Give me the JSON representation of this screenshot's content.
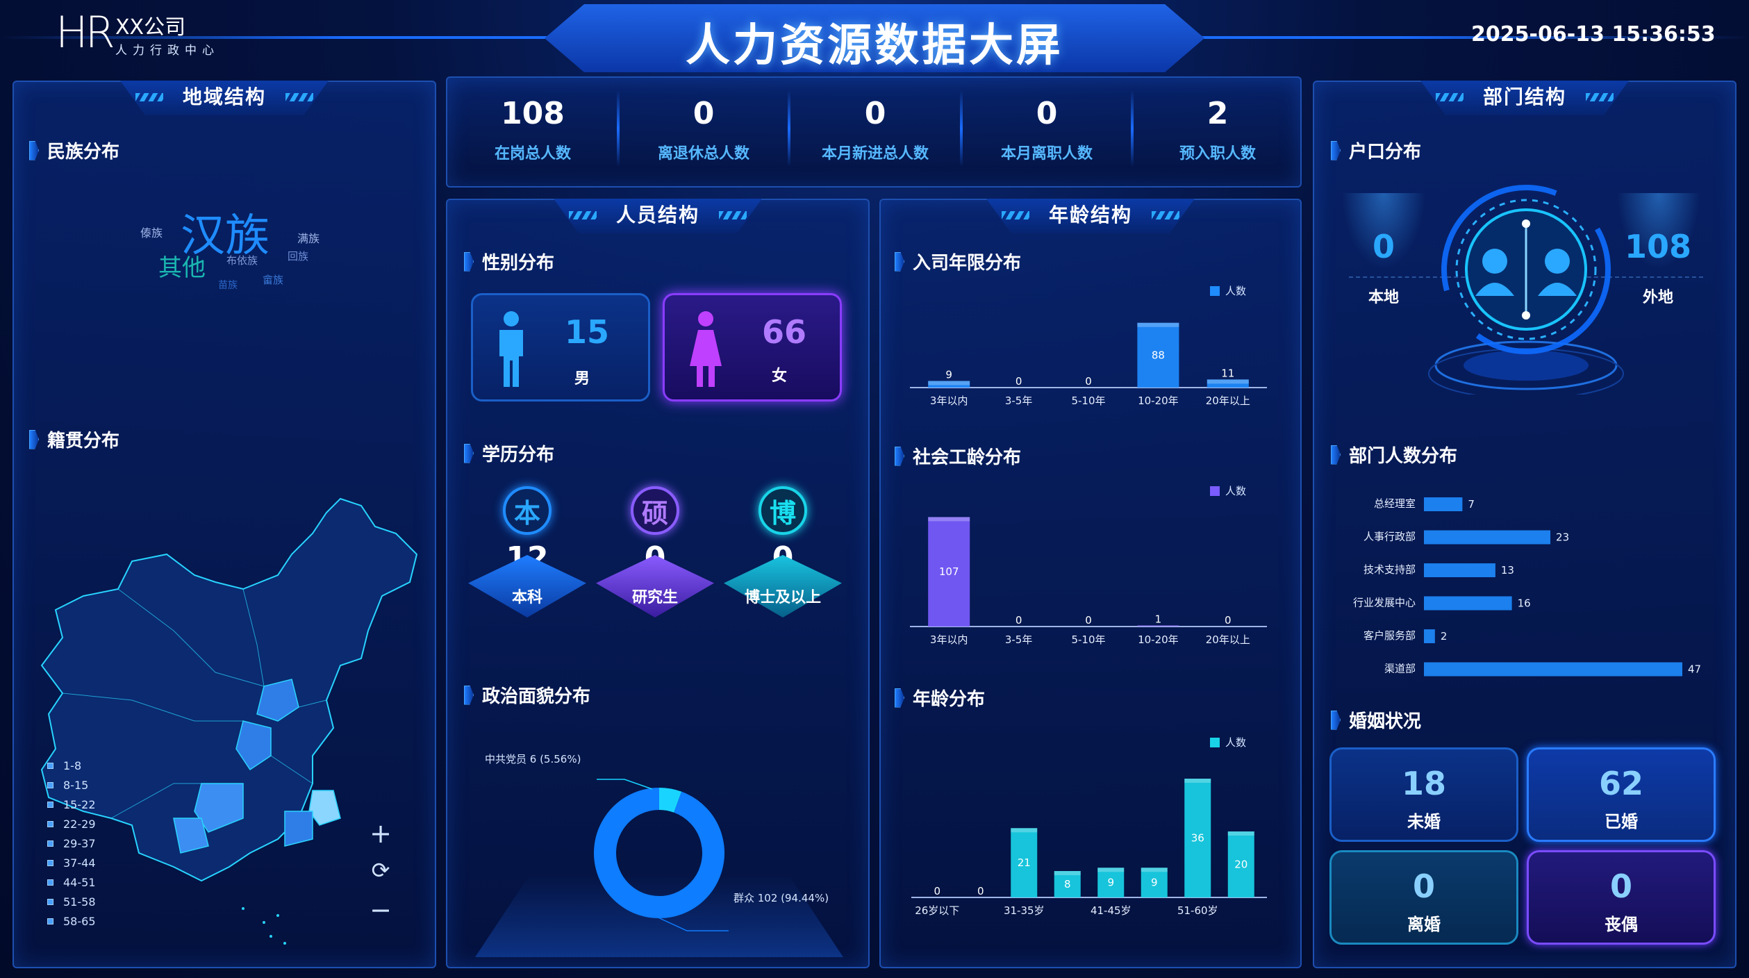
{
  "header": {
    "logo": "HR",
    "company": "XX公司",
    "dept": "人力行政中心",
    "title": "人力资源数据大屏",
    "datetime": "2025-06-13 15:36:53"
  },
  "panels": {
    "region": "地域结构",
    "personnel": "人员结构",
    "age": "年龄结构",
    "dept": "部门结构"
  },
  "stats": [
    {
      "value": "108",
      "label": "在岗总人数"
    },
    {
      "value": "0",
      "label": "离退休总人数"
    },
    {
      "value": "0",
      "label": "本月新进总人数"
    },
    {
      "value": "0",
      "label": "本月离职人数"
    },
    {
      "value": "2",
      "label": "预入职人数"
    }
  ],
  "ethnic": {
    "title": "民族分布",
    "words": [
      {
        "text": "汉族",
        "color": "#1f8cff"
      },
      {
        "text": "其他",
        "color": "#1ab6b0"
      },
      {
        "text": "傣族",
        "color": "#9fb6e8"
      },
      {
        "text": "满族",
        "color": "#9fb6e8"
      },
      {
        "text": "布依族",
        "color": "#7f9bd8"
      },
      {
        "text": "回族",
        "color": "#6f8fd8"
      },
      {
        "text": "苗族",
        "color": "#2a66c8"
      },
      {
        "text": "畲族",
        "color": "#3a7ad8"
      }
    ]
  },
  "native": {
    "title": "籍贯分布",
    "legend": [
      "1-8",
      "8-15",
      "15-22",
      "22-29",
      "29-37",
      "37-44",
      "44-51",
      "51-58",
      "58-65"
    ]
  },
  "map_controls": {
    "zoom_in": "+",
    "reset": "⟳",
    "zoom_out": "−"
  },
  "gender": {
    "title": "性别分布",
    "male": {
      "value": "15",
      "label": "男"
    },
    "female": {
      "value": "66",
      "label": "女"
    }
  },
  "education": {
    "title": "学历分布",
    "items": [
      {
        "icon": "本",
        "value": "12",
        "label": "本科"
      },
      {
        "icon": "硕",
        "value": "0",
        "label": "研究生"
      },
      {
        "icon": "博",
        "value": "0",
        "label": "博士及以上"
      }
    ]
  },
  "politics": {
    "title": "政治面貌分布",
    "labels": [
      "中共党员 6 (5.56%)",
      "群众 102 (94.44%)"
    ]
  },
  "tenure": {
    "title": "入司年限分布"
  },
  "worktime": {
    "title": "社会工龄分布"
  },
  "agedist": {
    "title": "年龄分布"
  },
  "hukou": {
    "title": "户口分布",
    "local": {
      "value": "0",
      "label": "本地"
    },
    "outside": {
      "value": "108",
      "label": "外地"
    }
  },
  "deptdist": {
    "title": "部门人数分布"
  },
  "marriage": {
    "title": "婚姻状况",
    "items": [
      {
        "value": "18",
        "label": "未婚"
      },
      {
        "value": "62",
        "label": "已婚"
      },
      {
        "value": "0",
        "label": "离婚"
      },
      {
        "value": "0",
        "label": "丧偶"
      }
    ]
  },
  "chart_data": [
    {
      "type": "bar",
      "title": "入司年限分布",
      "legend": "人数",
      "categories": [
        "3年以内",
        "3-5年",
        "5-10年",
        "10-20年",
        "20年以上"
      ],
      "values": [
        9,
        0,
        0,
        88,
        11
      ],
      "ylim": [
        0,
        100
      ],
      "color": "#1f8cff"
    },
    {
      "type": "bar",
      "title": "社会工龄分布",
      "legend": "人数",
      "categories": [
        "3年以内",
        "3-5年",
        "5-10年",
        "10-20年",
        "20年以上"
      ],
      "values": [
        107,
        0,
        0,
        1,
        0
      ],
      "ylim": [
        0,
        110
      ],
      "color": "#7a5cff"
    },
    {
      "type": "bar",
      "title": "年龄分布",
      "legend": "人数",
      "categories": [
        "26岁以下",
        "",
        "31-35岁",
        "",
        "41-45岁",
        "",
        "51-60岁",
        ""
      ],
      "tick_labels": [
        "26岁以下",
        "31-35岁",
        "41-45岁",
        "51-60岁"
      ],
      "values": [
        0,
        0,
        21,
        8,
        9,
        9,
        36,
        20
      ],
      "ylim": [
        0,
        40
      ],
      "color": "#19d4e8"
    },
    {
      "type": "bar",
      "orientation": "horizontal",
      "title": "部门人数分布",
      "categories": [
        "总经理室",
        "人事行政部",
        "技术支持部",
        "行业发展中心",
        "客户服务部",
        "渠道部"
      ],
      "values": [
        7,
        23,
        13,
        16,
        2,
        47
      ],
      "xlim": [
        0,
        47
      ],
      "color": "#1f8cff"
    },
    {
      "type": "pie",
      "title": "政治面貌分布",
      "categories": [
        "中共党员",
        "群众"
      ],
      "values": [
        6,
        102
      ],
      "percent": [
        5.56,
        94.44
      ],
      "colors": [
        "#19d4ff",
        "#0e7dff"
      ]
    }
  ]
}
